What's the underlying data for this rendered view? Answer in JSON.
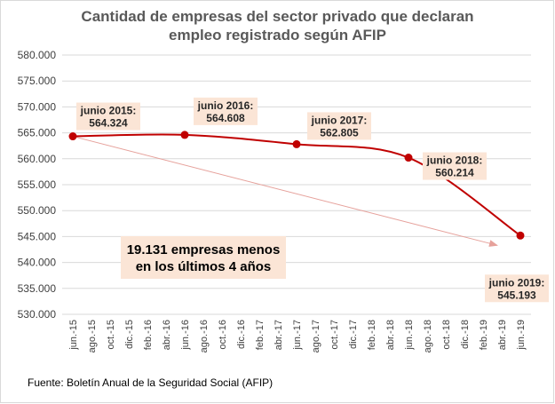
{
  "chart_data": {
    "type": "line",
    "title_lines": [
      "Cantidad de empresas del sector privado que declaran",
      "empleo registrado según AFIP"
    ],
    "x_ticks": [
      "jun.-15",
      "ago.-15",
      "oct.-15",
      "dic.-15",
      "feb.-16",
      "abr.-16",
      "jun.-16",
      "ago.-16",
      "oct.-16",
      "dic.-16",
      "feb.-17",
      "abr.-17",
      "jun.-17",
      "ago.-17",
      "oct.-17",
      "dic.-17",
      "feb.-18",
      "abr.-18",
      "jun.-18",
      "ago.-18",
      "oct.-18",
      "dic.-18",
      "feb.-19",
      "abr.-19",
      "jun.-19"
    ],
    "y_ticks": [
      "530.000",
      "535.000",
      "540.000",
      "545.000",
      "550.000",
      "555.000",
      "560.000",
      "565.000",
      "570.000",
      "575.000",
      "580.000"
    ],
    "ylim": [
      530000,
      580000
    ],
    "y_step": 5000,
    "series": [
      {
        "values": [
          564324,
          564608,
          562805,
          560214,
          545193
        ],
        "x_index": [
          0,
          6,
          12,
          18,
          24
        ],
        "labels": [
          [
            "junio 2015:",
            "564.324"
          ],
          [
            "junio 2016:",
            "564.608"
          ],
          [
            "junio 2017:",
            "562.805"
          ],
          [
            "junio 2018:",
            "560.214"
          ],
          [
            "junio 2019:",
            "545.193"
          ]
        ],
        "color": "#c00000"
      }
    ],
    "trend_arrow": {
      "from_index": 0,
      "from_value": 564324,
      "to_index": 24,
      "to_value": 543300,
      "color": "#e6a19b"
    },
    "summary_box": [
      "19.131 empresas menos",
      "en los últimos 4 años"
    ],
    "grid": true,
    "gridline_color": "#d9d9d9"
  },
  "source": "Fuente: Boletín Anual de la Seguridad Social (AFIP)"
}
